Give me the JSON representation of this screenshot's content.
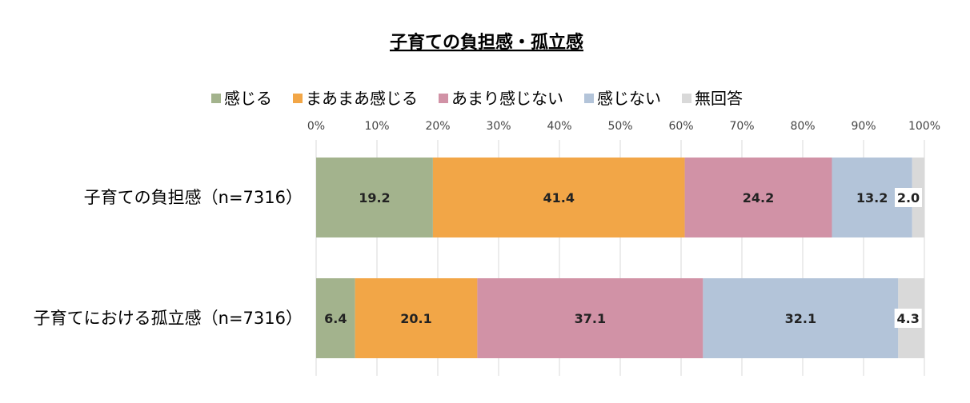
{
  "chart_data": {
    "type": "bar",
    "orientation": "horizontal-stacked-100",
    "title": "子育ての負担感・孤立感",
    "categories": [
      "子育ての負担感（n=7316）",
      "子育てにおける孤立感（n=7316）"
    ],
    "series": [
      {
        "name": "感じる",
        "color": "#a3b38d",
        "values": [
          19.2,
          6.4
        ]
      },
      {
        "name": "まあまあ感じる",
        "color": "#f2a647",
        "values": [
          41.4,
          20.1
        ]
      },
      {
        "name": "あまり感じない",
        "color": "#d192a6",
        "values": [
          24.2,
          37.1
        ]
      },
      {
        "name": "感じない",
        "color": "#b3c4d9",
        "values": [
          13.2,
          32.1
        ]
      },
      {
        "name": "無回答",
        "color": "#d9d9d9",
        "values": [
          2.0,
          4.3
        ]
      }
    ],
    "xlim": [
      0,
      100
    ],
    "xticks": [
      "0%",
      "10%",
      "20%",
      "30%",
      "40%",
      "50%",
      "60%",
      "70%",
      "80%",
      "90%",
      "100%"
    ],
    "grid": true,
    "legend_position": "top"
  }
}
